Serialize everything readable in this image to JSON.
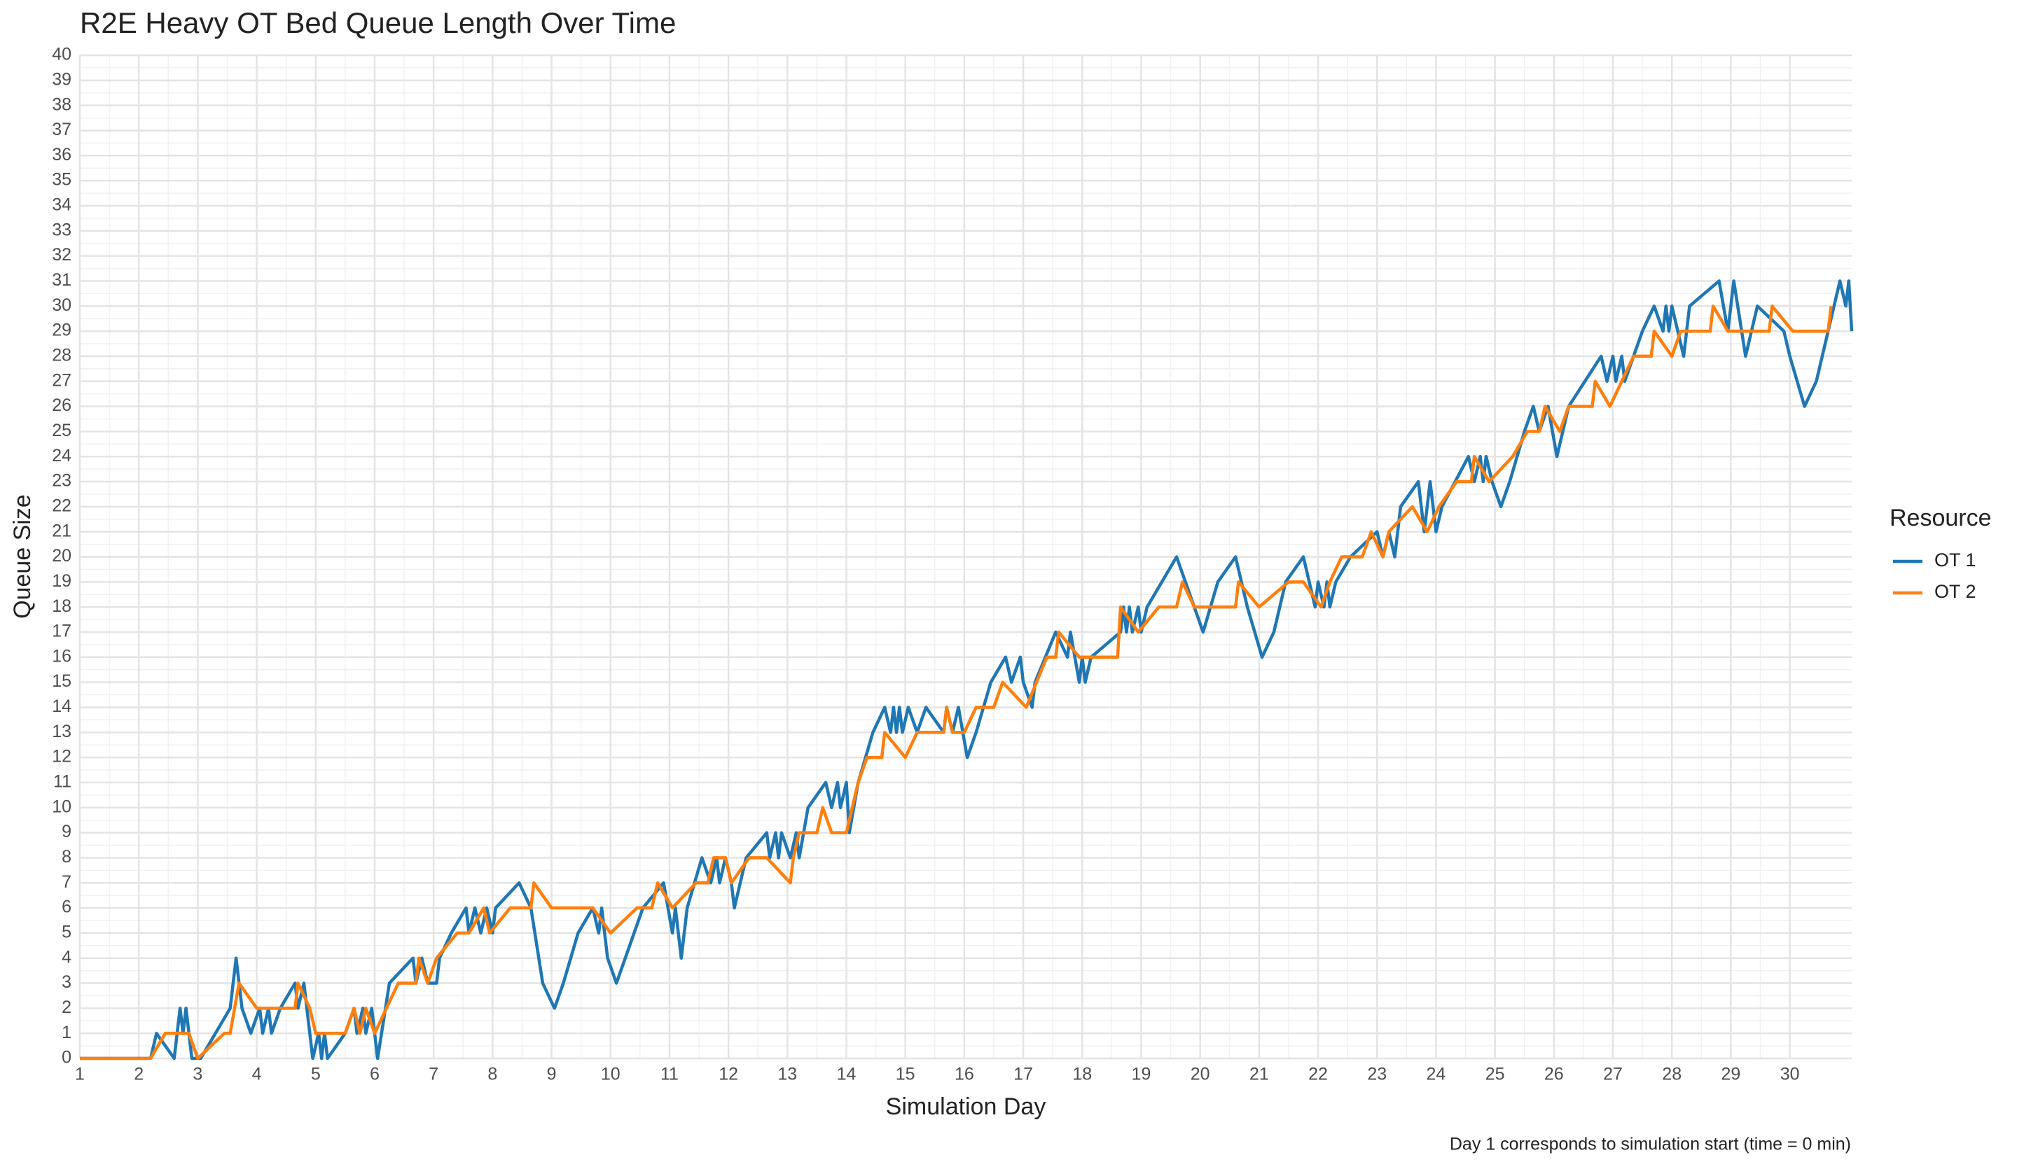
{
  "chart_data": {
    "type": "line",
    "title": "R2E Heavy OT Bed Queue Length Over Time",
    "x_label": "Simulation Day",
    "y_label": "Queue Size",
    "caption": "Day 1 corresponds to simulation start (time = 0 min)",
    "legend_title": "Resource",
    "legend": "right",
    "grid": true,
    "xlim": [
      1,
      31.05
    ],
    "ylim": [
      0,
      40
    ],
    "xticks": [
      1,
      2,
      3,
      4,
      5,
      6,
      7,
      8,
      9,
      10,
      11,
      12,
      13,
      14,
      15,
      16,
      17,
      18,
      19,
      20,
      21,
      22,
      23,
      24,
      25,
      26,
      27,
      28,
      29,
      30
    ],
    "yticks": [
      0,
      1,
      2,
      3,
      4,
      5,
      6,
      7,
      8,
      9,
      10,
      11,
      12,
      13,
      14,
      15,
      16,
      17,
      18,
      19,
      20,
      21,
      22,
      23,
      24,
      25,
      26,
      27,
      28,
      29,
      30,
      31,
      32,
      33,
      34,
      35,
      36,
      37,
      38,
      39,
      40
    ],
    "series": [
      {
        "name": "OT 1",
        "color": "#1f77b4",
        "x": [
          1,
          2.2,
          2.3,
          2.6,
          2.7,
          2.75,
          2.8,
          2.9,
          3.05,
          3.3,
          3.55,
          3.65,
          3.75,
          3.9,
          4.05,
          4.1,
          4.2,
          4.25,
          4.4,
          4.65,
          4.7,
          4.8,
          4.85,
          4.95,
          5.05,
          5.1,
          5.15,
          5.2,
          5.5,
          5.65,
          5.7,
          5.8,
          5.85,
          5.95,
          6.05,
          6.25,
          6.65,
          6.7,
          6.8,
          6.9,
          7.05,
          7.1,
          7.3,
          7.55,
          7.6,
          7.7,
          7.8,
          7.9,
          8.0,
          8.05,
          8.45,
          8.65,
          8.85,
          9.05,
          9.2,
          9.45,
          9.7,
          9.8,
          9.85,
          9.95,
          10.1,
          10.25,
          10.55,
          10.9,
          11.05,
          11.1,
          11.2,
          11.3,
          11.55,
          11.7,
          11.8,
          11.85,
          11.95,
          12.05,
          12.1,
          12.3,
          12.65,
          12.7,
          12.8,
          12.85,
          12.9,
          13.05,
          13.15,
          13.2,
          13.35,
          13.65,
          13.75,
          13.85,
          13.9,
          14.0,
          14.05,
          14.2,
          14.45,
          14.65,
          14.75,
          14.8,
          14.85,
          14.9,
          14.95,
          15.05,
          15.2,
          15.35,
          15.65,
          15.7,
          15.8,
          15.9,
          16.05,
          16.2,
          16.45,
          16.7,
          16.8,
          16.95,
          17.0,
          17.15,
          17.2,
          17.55,
          17.75,
          17.8,
          17.95,
          18.0,
          18.05,
          18.15,
          18.65,
          18.7,
          18.75,
          18.8,
          18.85,
          18.95,
          19.0,
          19.1,
          19.35,
          19.6,
          19.9,
          20.05,
          20.3,
          20.6,
          20.8,
          21.05,
          21.25,
          21.45,
          21.75,
          21.95,
          22.0,
          22.1,
          22.15,
          22.2,
          22.3,
          22.55,
          23.0,
          23.1,
          23.2,
          23.3,
          23.4,
          23.7,
          23.8,
          23.9,
          24.0,
          24.1,
          24.55,
          24.65,
          24.75,
          24.8,
          24.85,
          24.95,
          25.1,
          25.25,
          25.5,
          25.65,
          25.75,
          25.9,
          26.05,
          26.15,
          26.25,
          26.8,
          26.9,
          27.0,
          27.05,
          27.15,
          27.2,
          27.5,
          27.7,
          27.85,
          27.9,
          27.95,
          28.0,
          28.2,
          28.3,
          28.8,
          28.95,
          29.05,
          29.25,
          29.45,
          29.9,
          30.0,
          30.25,
          30.45,
          30.75,
          30.85,
          30.95,
          31.0,
          31.05
        ],
        "values": [
          0,
          0,
          1,
          0,
          2,
          1,
          2,
          0,
          0,
          1,
          2,
          4,
          2,
          1,
          2,
          1,
          2,
          1,
          2,
          3,
          2,
          3,
          2,
          0,
          1,
          0,
          1,
          0,
          1,
          2,
          1,
          2,
          1,
          2,
          0,
          3,
          4,
          3,
          4,
          3,
          3,
          4,
          5,
          6,
          5,
          6,
          5,
          6,
          5,
          6,
          7,
          6,
          3,
          2,
          3,
          5,
          6,
          5,
          6,
          4,
          3,
          4,
          6,
          7,
          5,
          6,
          4,
          6,
          8,
          7,
          8,
          7,
          8,
          7,
          6,
          8,
          9,
          8,
          9,
          8,
          9,
          8,
          9,
          8,
          10,
          11,
          10,
          11,
          10,
          11,
          9,
          11,
          13,
          14,
          13,
          14,
          13,
          14,
          13,
          14,
          13,
          14,
          13,
          14,
          13,
          14,
          12,
          13,
          15,
          16,
          15,
          16,
          15,
          14,
          15,
          17,
          16,
          17,
          15,
          16,
          15,
          16,
          17,
          18,
          17,
          18,
          17,
          18,
          17,
          18,
          19,
          20,
          18,
          17,
          19,
          20,
          18,
          16,
          17,
          19,
          20,
          18,
          19,
          18,
          19,
          18,
          19,
          20,
          21,
          20,
          21,
          20,
          22,
          23,
          21,
          23,
          21,
          22,
          24,
          23,
          24,
          23,
          24,
          23,
          22,
          23,
          25,
          26,
          25,
          26,
          24,
          25,
          26,
          28,
          27,
          28,
          27,
          28,
          27,
          29,
          30,
          29,
          30,
          29,
          30,
          28,
          30,
          31,
          29,
          31,
          28,
          30,
          29,
          28,
          26,
          27,
          30,
          31,
          30,
          31,
          29
        ]
      },
      {
        "name": "OT 2",
        "color": "#ff7f0e",
        "x": [
          1,
          2.2,
          2.45,
          2.85,
          3.0,
          3.45,
          3.55,
          3.7,
          4.0,
          4.65,
          4.7,
          4.9,
          5.0,
          5.5,
          5.65,
          5.75,
          5.85,
          6.0,
          6.2,
          6.4,
          6.7,
          6.75,
          6.9,
          7.05,
          7.4,
          7.6,
          7.85,
          7.95,
          8.3,
          8.65,
          8.7,
          9.0,
          9.7,
          10.0,
          10.45,
          10.7,
          10.8,
          11.05,
          11.45,
          11.65,
          11.75,
          11.95,
          12.05,
          12.35,
          12.65,
          13.05,
          13.1,
          13.2,
          13.5,
          13.6,
          13.75,
          14.0,
          14.2,
          14.35,
          14.6,
          14.65,
          15.0,
          15.2,
          15.65,
          15.7,
          15.8,
          16.0,
          16.2,
          16.5,
          16.65,
          17.05,
          17.4,
          17.55,
          17.6,
          17.95,
          18.6,
          18.65,
          18.95,
          19.3,
          19.6,
          19.7,
          19.9,
          20.6,
          20.65,
          21.0,
          21.5,
          21.75,
          22.05,
          22.2,
          22.4,
          22.75,
          22.9,
          23.1,
          23.2,
          23.6,
          23.85,
          24.05,
          24.35,
          24.6,
          24.65,
          24.9,
          25.3,
          25.55,
          25.75,
          25.85,
          26.1,
          26.25,
          26.65,
          26.7,
          26.95,
          27.35,
          27.65,
          27.7,
          28.0,
          28.15,
          28.65,
          28.7,
          28.95,
          29.65,
          29.7,
          30.05,
          30.65,
          30.7
        ],
        "values": [
          0,
          0,
          1,
          1,
          0,
          1,
          1,
          3,
          2,
          2,
          3,
          2,
          1,
          1,
          2,
          1,
          2,
          1,
          2,
          3,
          3,
          4,
          3,
          4,
          5,
          5,
          6,
          5,
          6,
          6,
          7,
          6,
          6,
          5,
          6,
          6,
          7,
          6,
          7,
          7,
          8,
          8,
          7,
          8,
          8,
          7,
          8,
          9,
          9,
          10,
          9,
          9,
          11,
          12,
          12,
          13,
          12,
          13,
          13,
          14,
          13,
          13,
          14,
          14,
          15,
          14,
          16,
          16,
          17,
          16,
          16,
          18,
          17,
          18,
          18,
          19,
          18,
          18,
          19,
          18,
          19,
          19,
          18,
          19,
          20,
          20,
          21,
          20,
          21,
          22,
          21,
          22,
          23,
          23,
          24,
          23,
          24,
          25,
          25,
          26,
          25,
          26,
          26,
          27,
          26,
          28,
          28,
          29,
          28,
          29,
          29,
          30,
          29,
          29,
          30,
          29,
          29,
          30
        ]
      }
    ]
  }
}
